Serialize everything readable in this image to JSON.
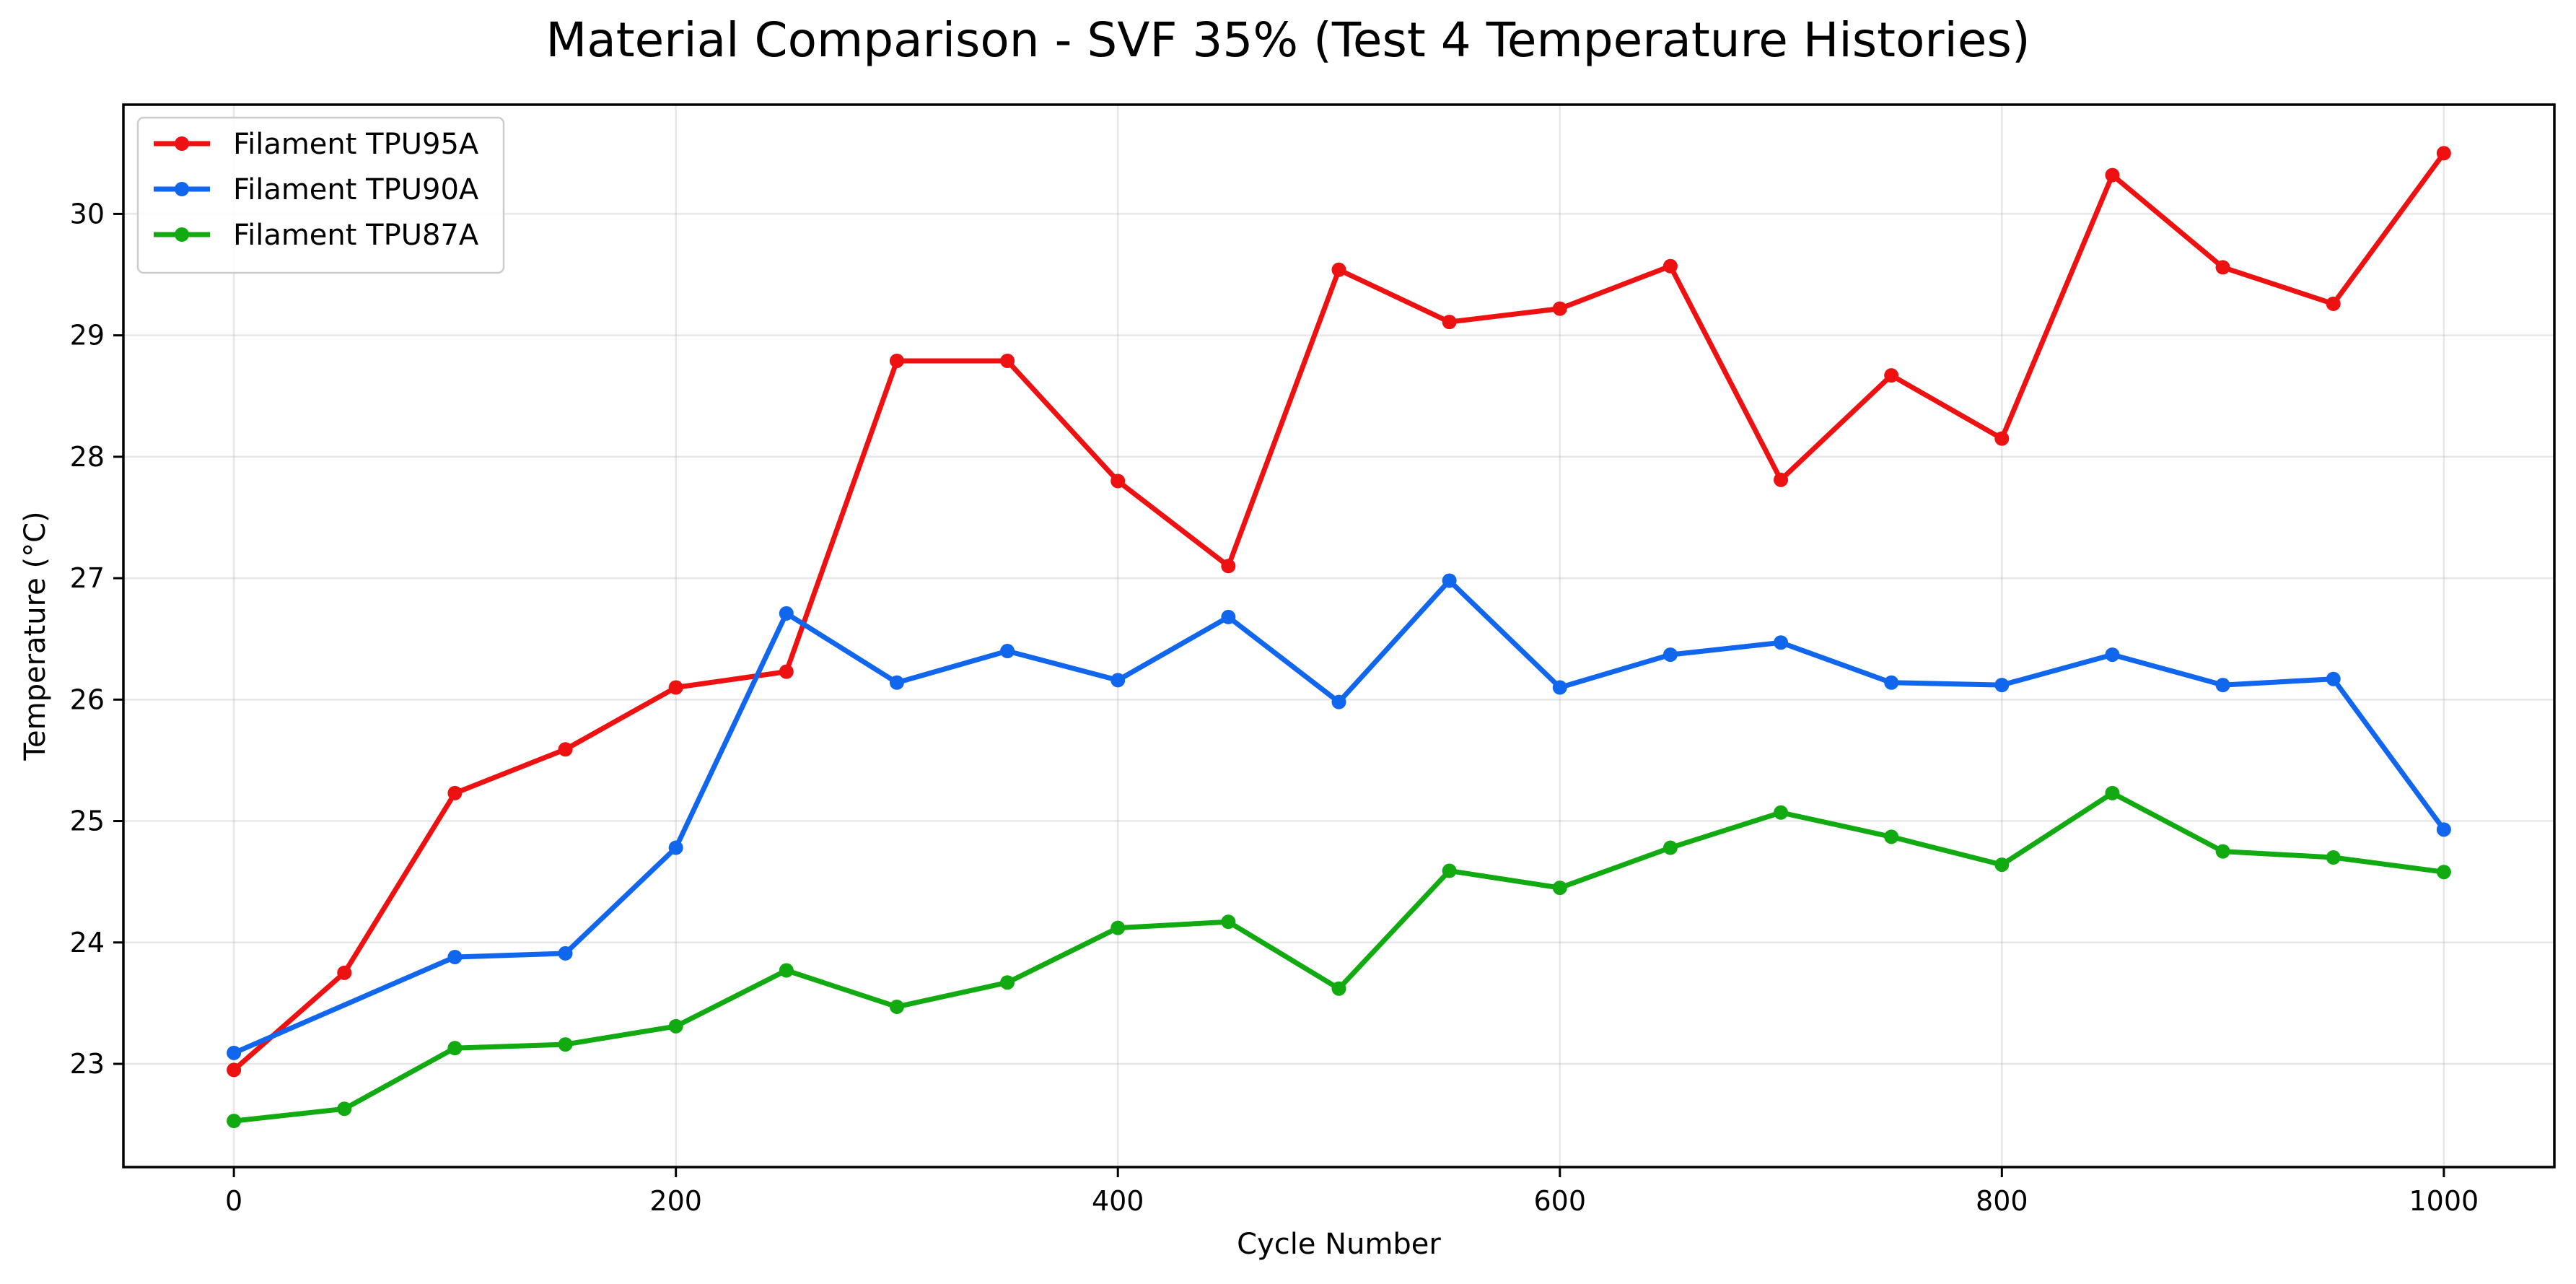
{
  "chart_data": {
    "type": "line",
    "title": "Material Comparison - SVF 35% (Test 4 Temperature Histories)",
    "xlabel": "Cycle Number",
    "ylabel": "Temperature (°C)",
    "xlim": [
      -50,
      1050
    ],
    "ylim": [
      22.15,
      30.9
    ],
    "xticks": [
      0,
      200,
      400,
      600,
      800,
      1000
    ],
    "yticks": [
      23,
      24,
      25,
      26,
      27,
      28,
      29,
      30
    ],
    "grid": true,
    "legend_position": "top-left",
    "x": [
      0,
      50,
      100,
      150,
      200,
      250,
      300,
      350,
      400,
      450,
      500,
      550,
      600,
      650,
      700,
      750,
      800,
      850,
      900,
      950,
      1000
    ],
    "series": [
      {
        "name": "Filament TPU95A",
        "color": "#ee1111",
        "x": [
          0,
          50,
          100,
          150,
          200,
          250,
          300,
          350,
          400,
          450,
          500,
          550,
          600,
          650,
          700,
          750,
          800,
          850,
          900,
          950,
          1000
        ],
        "values": [
          22.95,
          23.75,
          25.23,
          25.59,
          26.1,
          26.23,
          28.79,
          28.79,
          27.8,
          27.1,
          29.54,
          29.11,
          29.22,
          29.57,
          27.81,
          28.67,
          28.15,
          30.32,
          29.56,
          29.26,
          30.5
        ]
      },
      {
        "name": "Filament TPU90A",
        "color": "#1166ee",
        "x": [
          0,
          100,
          150,
          200,
          250,
          300,
          350,
          400,
          450,
          500,
          550,
          600,
          650,
          700,
          750,
          800,
          850,
          900,
          950,
          1000
        ],
        "values": [
          23.09,
          23.88,
          23.91,
          24.78,
          26.71,
          26.14,
          26.4,
          26.16,
          26.68,
          25.98,
          26.98,
          26.1,
          26.37,
          26.47,
          26.14,
          26.12,
          26.37,
          26.12,
          26.17,
          24.93
        ]
      },
      {
        "name": "Filament TPU87A",
        "color": "#11aa11",
        "x": [
          0,
          50,
          100,
          150,
          200,
          250,
          300,
          350,
          400,
          450,
          500,
          550,
          600,
          650,
          700,
          750,
          800,
          850,
          900,
          950,
          1000
        ],
        "values": [
          22.53,
          22.63,
          23.13,
          23.16,
          23.31,
          23.77,
          23.47,
          23.67,
          24.12,
          24.17,
          23.62,
          24.59,
          24.45,
          24.78,
          25.07,
          24.87,
          24.64,
          25.23,
          24.75,
          24.7,
          24.58
        ]
      }
    ]
  }
}
